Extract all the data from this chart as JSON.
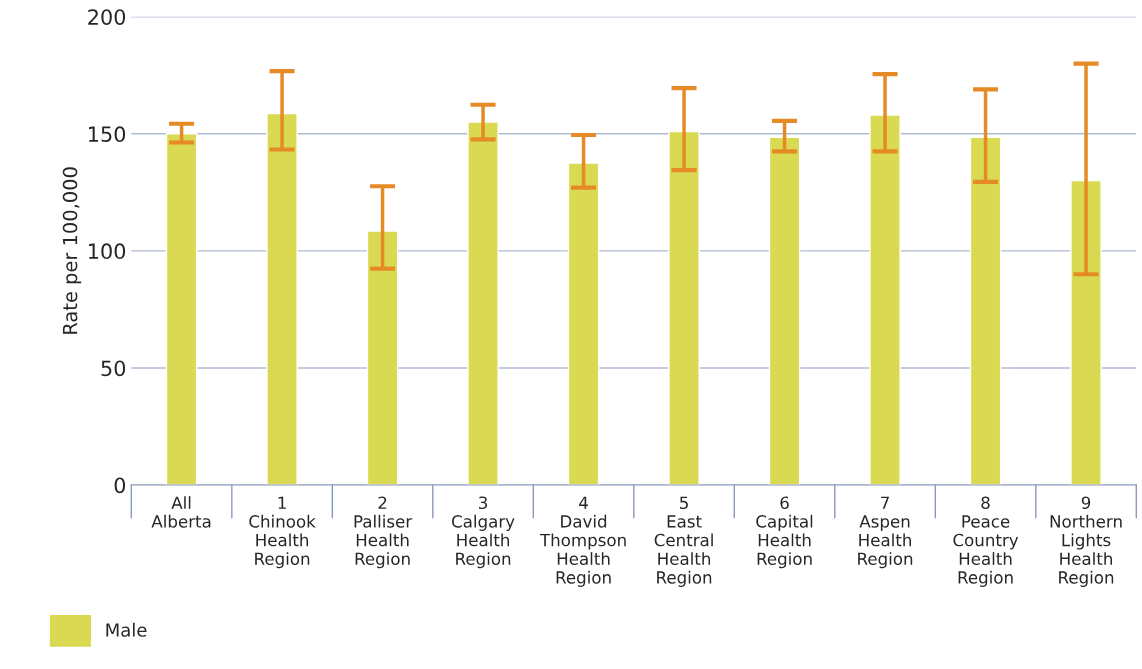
{
  "chart_data": {
    "type": "bar",
    "ylabel": "Rate per 100,000",
    "categories": [
      "All\nAlberta",
      "1\nChinook\nHealth\nRegion",
      "2\nPalliser\nHealth\nRegion",
      "3\nCalgary\nHealth\nRegion",
      "4\nDavid\nThompson\nHealth\nRegion",
      "5\nEast\nCentral\nHealth\nRegion",
      "6\nCapital\nHealth\nRegion",
      "7\nAspen\nHealth\nRegion",
      "8\nPeace\nCountry\nHealth\nRegion",
      "9\nNorthern\nLights\nHealth\nRegion"
    ],
    "series": [
      {
        "name": "Male",
        "color": "#d9d952",
        "values": [
          150,
          158.6,
          108.5,
          155,
          137.5,
          151,
          148.5,
          158,
          148.5,
          130
        ],
        "errors": [
          [
            146.3,
            154.3
          ],
          [
            143.3,
            176.8
          ],
          [
            92.4,
            127.6
          ],
          [
            147.6,
            162.4
          ],
          [
            127,
            149.5
          ],
          [
            134.5,
            169.5
          ],
          [
            142.5,
            155.5
          ],
          [
            142.5,
            175.5
          ],
          [
            129.5,
            169
          ],
          [
            90,
            180
          ]
        ]
      }
    ],
    "ylim": [
      0,
      200
    ],
    "yticks": [
      0,
      50,
      100,
      150,
      200
    ],
    "grid": "y",
    "legend": "bottom left"
  }
}
